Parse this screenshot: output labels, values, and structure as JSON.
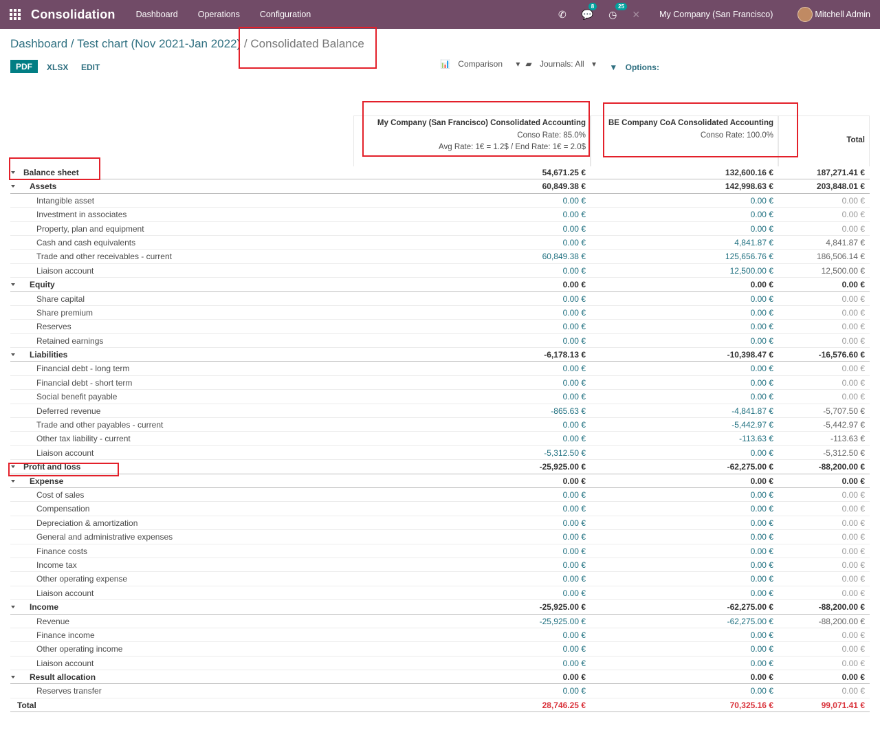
{
  "navbar": {
    "app_name": "Consolidation",
    "menu": [
      "Dashboard",
      "Operations",
      "Configuration"
    ],
    "messages_count": "8",
    "activities_count": "25",
    "company": "My Company (San Francisco)",
    "user": "Mitchell Admin"
  },
  "breadcrumb": {
    "part1": "Dashboard",
    "sep": "/",
    "part2": "Test chart (Nov 2021-Jan 2022)",
    "current": "Consolidated Balance"
  },
  "toolbar": {
    "pdf": "PDF",
    "xlsx": "XLSX",
    "edit": "EDIT",
    "comparison": "Comparison",
    "journals": "Journals: All",
    "options": "Options:"
  },
  "columns": {
    "col1": {
      "title": "My Company (San Francisco) Consolidated Accounting",
      "rate": "Conso Rate: 85.0%",
      "avg": "Avg Rate: 1€ = 1.2$ / End Rate: 1€ = 2.0$"
    },
    "col2": {
      "title": "BE Company CoA Consolidated Accounting",
      "rate": "Conso Rate: 100.0%"
    },
    "col3": {
      "title": "Total"
    }
  },
  "rows": [
    {
      "level": 0,
      "label": "Balance sheet",
      "v1": "54,671.25 €",
      "v2": "132,600.16 €",
      "v3": "187,271.41 €"
    },
    {
      "level": 1,
      "label": "Assets",
      "v1": "60,849.38 €",
      "v2": "142,998.63 €",
      "v3": "203,848.01 €"
    },
    {
      "level": 2,
      "label": "Intangible asset",
      "v1": "0.00 €",
      "v2": "0.00 €",
      "v3": "0.00 €"
    },
    {
      "level": 2,
      "label": "Investment in associates",
      "v1": "0.00 €",
      "v2": "0.00 €",
      "v3": "0.00 €"
    },
    {
      "level": 2,
      "label": "Property, plan and equipment",
      "v1": "0.00 €",
      "v2": "0.00 €",
      "v3": "0.00 €"
    },
    {
      "level": 2,
      "label": "Cash and cash equivalents",
      "v1": "0.00 €",
      "v2": "4,841.87 €",
      "v3": "4,841.87 €"
    },
    {
      "level": 2,
      "label": "Trade and other receivables - current",
      "v1": "60,849.38 €",
      "v2": "125,656.76 €",
      "v3": "186,506.14 €"
    },
    {
      "level": 2,
      "label": "Liaison account",
      "v1": "0.00 €",
      "v2": "12,500.00 €",
      "v3": "12,500.00 €"
    },
    {
      "level": 1,
      "label": "Equity",
      "v1": "0.00 €",
      "v2": "0.00 €",
      "v3": "0.00 €"
    },
    {
      "level": 2,
      "label": "Share capital",
      "v1": "0.00 €",
      "v2": "0.00 €",
      "v3": "0.00 €"
    },
    {
      "level": 2,
      "label": "Share premium",
      "v1": "0.00 €",
      "v2": "0.00 €",
      "v3": "0.00 €"
    },
    {
      "level": 2,
      "label": "Reserves",
      "v1": "0.00 €",
      "v2": "0.00 €",
      "v3": "0.00 €"
    },
    {
      "level": 2,
      "label": "Retained earnings",
      "v1": "0.00 €",
      "v2": "0.00 €",
      "v3": "0.00 €"
    },
    {
      "level": 1,
      "label": "Liabilities",
      "v1": "-6,178.13 €",
      "v2": "-10,398.47 €",
      "v3": "-16,576.60 €"
    },
    {
      "level": 2,
      "label": "Financial debt - long term",
      "v1": "0.00 €",
      "v2": "0.00 €",
      "v3": "0.00 €"
    },
    {
      "level": 2,
      "label": "Financial debt - short term",
      "v1": "0.00 €",
      "v2": "0.00 €",
      "v3": "0.00 €"
    },
    {
      "level": 2,
      "label": "Social benefit payable",
      "v1": "0.00 €",
      "v2": "0.00 €",
      "v3": "0.00 €"
    },
    {
      "level": 2,
      "label": "Deferred revenue",
      "v1": "-865.63 €",
      "v2": "-4,841.87 €",
      "v3": "-5,707.50 €"
    },
    {
      "level": 2,
      "label": "Trade and other payables - current",
      "v1": "0.00 €",
      "v2": "-5,442.97 €",
      "v3": "-5,442.97 €"
    },
    {
      "level": 2,
      "label": "Other tax liability - current",
      "v1": "0.00 €",
      "v2": "-113.63 €",
      "v3": "-113.63 €"
    },
    {
      "level": 2,
      "label": "Liaison account",
      "v1": "-5,312.50 €",
      "v2": "0.00 €",
      "v3": "-5,312.50 €"
    },
    {
      "level": 0,
      "label": "Profit and loss",
      "v1": "-25,925.00 €",
      "v2": "-62,275.00 €",
      "v3": "-88,200.00 €"
    },
    {
      "level": 1,
      "label": "Expense",
      "v1": "0.00 €",
      "v2": "0.00 €",
      "v3": "0.00 €"
    },
    {
      "level": 2,
      "label": "Cost of sales",
      "v1": "0.00 €",
      "v2": "0.00 €",
      "v3": "0.00 €"
    },
    {
      "level": 2,
      "label": "Compensation",
      "v1": "0.00 €",
      "v2": "0.00 €",
      "v3": "0.00 €"
    },
    {
      "level": 2,
      "label": "Depreciation & amortization",
      "v1": "0.00 €",
      "v2": "0.00 €",
      "v3": "0.00 €"
    },
    {
      "level": 2,
      "label": "General and administrative expenses",
      "v1": "0.00 €",
      "v2": "0.00 €",
      "v3": "0.00 €"
    },
    {
      "level": 2,
      "label": "Finance costs",
      "v1": "0.00 €",
      "v2": "0.00 €",
      "v3": "0.00 €"
    },
    {
      "level": 2,
      "label": "Income tax",
      "v1": "0.00 €",
      "v2": "0.00 €",
      "v3": "0.00 €"
    },
    {
      "level": 2,
      "label": "Other operating expense",
      "v1": "0.00 €",
      "v2": "0.00 €",
      "v3": "0.00 €"
    },
    {
      "level": 2,
      "label": "Liaison account",
      "v1": "0.00 €",
      "v2": "0.00 €",
      "v3": "0.00 €"
    },
    {
      "level": 1,
      "label": "Income",
      "v1": "-25,925.00 €",
      "v2": "-62,275.00 €",
      "v3": "-88,200.00 €"
    },
    {
      "level": 2,
      "label": "Revenue",
      "v1": "-25,925.00 €",
      "v2": "-62,275.00 €",
      "v3": "-88,200.00 €"
    },
    {
      "level": 2,
      "label": "Finance income",
      "v1": "0.00 €",
      "v2": "0.00 €",
      "v3": "0.00 €"
    },
    {
      "level": 2,
      "label": "Other operating income",
      "v1": "0.00 €",
      "v2": "0.00 €",
      "v3": "0.00 €"
    },
    {
      "level": 2,
      "label": "Liaison account",
      "v1": "0.00 €",
      "v2": "0.00 €",
      "v3": "0.00 €"
    },
    {
      "level": 1,
      "label": "Result allocation",
      "v1": "0.00 €",
      "v2": "0.00 €",
      "v3": "0.00 €"
    },
    {
      "level": 2,
      "label": "Reserves transfer",
      "v1": "0.00 €",
      "v2": "0.00 €",
      "v3": "0.00 €"
    },
    {
      "level": 3,
      "label": "Total",
      "v1": "28,746.25 €",
      "v2": "70,325.16 €",
      "v3": "99,071.41 €"
    }
  ],
  "colors": {
    "navbar": "#714b67",
    "link": "#2e6f80",
    "primary_button": "#017e84",
    "highlight_box": "#e3202a",
    "negative_total": "#d9323a"
  }
}
